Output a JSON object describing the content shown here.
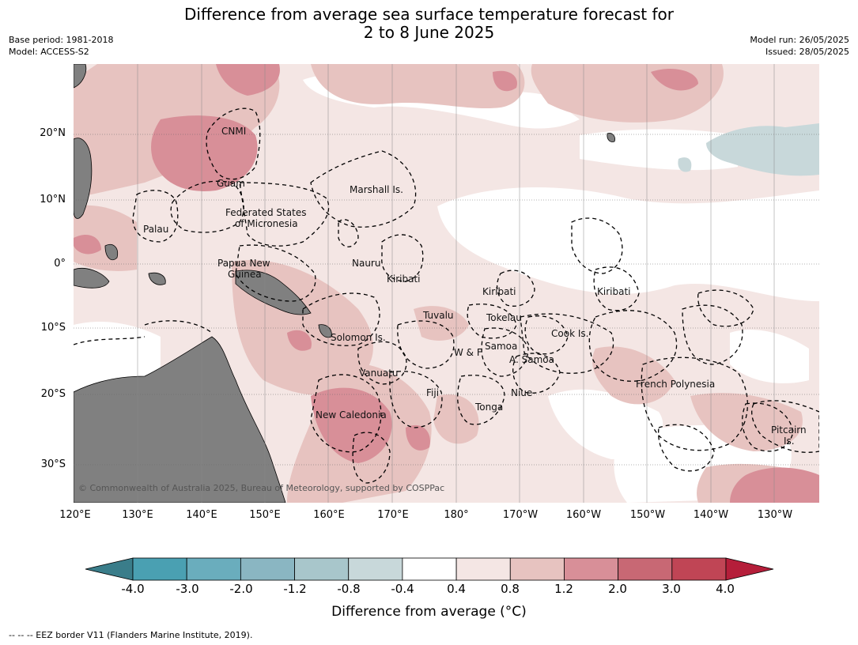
{
  "header": {
    "title_line1": "Difference from average sea surface temperature forecast for",
    "title_line2": "2 to 8 June 2025",
    "base_period": "Base period: 1981-2018",
    "model": "Model: ACCESS-S2",
    "model_run": "Model run: 26/05/2025",
    "issued": "Issued: 28/05/2025"
  },
  "map": {
    "lat_labels": [
      "20°N",
      "10°N",
      "0°",
      "10°S",
      "20°S",
      "30°S"
    ],
    "lon_labels": [
      "120°E",
      "130°E",
      "140°E",
      "150°E",
      "160°E",
      "170°E",
      "180°",
      "170°W",
      "160°W",
      "150°W",
      "140°W",
      "130°W"
    ],
    "regions": {
      "cnmi": "CNMI",
      "guam": "Guam",
      "marshall": "Marshall Is.",
      "fsm1": "Federated States",
      "fsm2": "of Micronesia",
      "palau": "Palau",
      "png1": "Papua New",
      "png2": "Guinea",
      "nauru": "Nauru",
      "kiribati_w": "Kiribati",
      "kiribati_c": "Kiribati",
      "kiribati_e": "Kiribati",
      "tuvalu": "Tuvalu",
      "tokelau": "Tokelau",
      "solomon": "Solomon Is.",
      "samoa": "Samoa",
      "wf": "W & F",
      "asamoa": "A. Samoa",
      "cook": "Cook Is.",
      "vanuatu": "Vanuatu",
      "fiji": "Fiji",
      "niue": "Niue",
      "tonga": "Tonga",
      "french_polynesia": "French Polynesia",
      "new_caledonia": "New Caledonia",
      "pitcairn1": "Pitcairn",
      "pitcairn2": "Is."
    },
    "copyright": "© Commonwealth of Australia 2025, Bureau of Meteorology, supported by COSPPac",
    "land_color": "#808080"
  },
  "colorbar": {
    "labels": [
      "-4.0",
      "-3.0",
      "-2.0",
      "-1.2",
      "-0.8",
      "-0.4",
      "0.4",
      "0.8",
      "1.2",
      "2.0",
      "3.0",
      "4.0"
    ],
    "colors": [
      "#4aa0b2",
      "#6aadbd",
      "#8ab6c2",
      "#a8c6cb",
      "#c8d8da",
      "#ffffff",
      "#f4e6e4",
      "#e7c3c0",
      "#d88f98",
      "#c86874",
      "#c04555"
    ],
    "low_extend_color": "#3a7d8a",
    "high_extend_color": "#b51e3a",
    "title": "Difference from average (°C)"
  },
  "footnote": "-- -- -- EEZ border V11 (Flanders Marine Institute, 2019)."
}
